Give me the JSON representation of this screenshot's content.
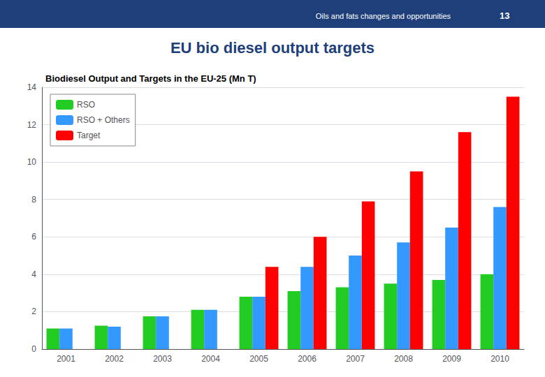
{
  "chart_data": {
    "type": "bar",
    "title": "EU bio diesel output targets",
    "subtitle": "Biodiesel Output and Targets in the EU-25 (Mn T)",
    "annotations": [
      "Oils and fats changes and opportunities",
      "13"
    ],
    "categories": [
      "2001",
      "2002",
      "2003",
      "2004",
      "2005",
      "2006",
      "2007",
      "2008",
      "2009",
      "2010"
    ],
    "series": [
      {
        "name": "RSO",
        "color": "#22cc22",
        "values": [
          1.1,
          1.25,
          1.75,
          2.1,
          2.8,
          3.1,
          3.3,
          3.5,
          3.7,
          4.0
        ]
      },
      {
        "name": "RSO + Others",
        "color": "#3399ff",
        "values": [
          1.1,
          1.2,
          1.75,
          2.1,
          2.8,
          4.4,
          5.0,
          5.7,
          6.5,
          7.6
        ]
      },
      {
        "name": "Target",
        "color": "#ff0000",
        "values": [
          null,
          null,
          null,
          null,
          4.4,
          6.0,
          7.9,
          9.5,
          11.6,
          13.5
        ]
      }
    ],
    "ylim": [
      0,
      14
    ],
    "yticks": [
      0,
      2,
      4,
      6,
      8,
      10,
      12,
      14
    ],
    "grid": true,
    "legend": "upper left"
  }
}
